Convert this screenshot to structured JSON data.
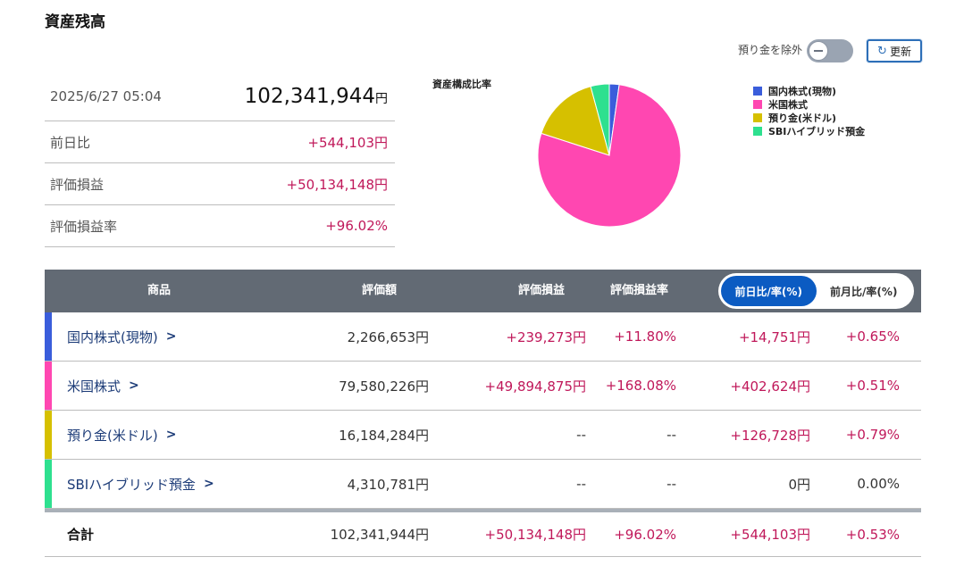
{
  "page": {
    "title": "資産残高"
  },
  "controls": {
    "exclude_label": "預り金を除外",
    "refresh_label": "更新"
  },
  "summary": {
    "datetime": "2025/6/27 05:04",
    "total": "102,341,944",
    "total_unit": "円",
    "rows": [
      {
        "label": "前日比",
        "value": "+544,103円"
      },
      {
        "label": "評価損益",
        "value": "+50,134,148円"
      },
      {
        "label": "評価損益率",
        "value": "+96.02%"
      }
    ]
  },
  "chart_data": {
    "type": "pie",
    "title": "資産構成比率",
    "categories": [
      "国内株式(現物)",
      "米国株式",
      "預り金(米ドル)",
      "SBIハイブリッド預金"
    ],
    "values": [
      2266653,
      79580226,
      16184284,
      4310781
    ],
    "colors": [
      "#3a5ddb",
      "#ff47b1",
      "#d6c000",
      "#2ee08f"
    ],
    "legend_position": "right"
  },
  "table": {
    "headers": {
      "product": "商品",
      "valuation": "評価額",
      "gain": "評価損益",
      "gain_rate": "評価損益率"
    },
    "toggle": {
      "active": "前日比/率(%)",
      "inactive": "前月比/率(%)"
    },
    "rows": [
      {
        "name": "国内株式(現物)",
        "color": "#3a5ddb",
        "valuation": "2,266,653円",
        "gain": "+239,273円",
        "gain_rate": "+11.80%",
        "day_change": "+14,751円",
        "day_rate": "+0.65%"
      },
      {
        "name": "米国株式",
        "color": "#ff47b1",
        "valuation": "79,580,226円",
        "gain": "+49,894,875円",
        "gain_rate": "+168.08%",
        "day_change": "+402,624円",
        "day_rate": "+0.51%"
      },
      {
        "name": "預り金(米ドル)",
        "color": "#d6c000",
        "valuation": "16,184,284円",
        "gain": "--",
        "gain_rate": "--",
        "day_change": "+126,728円",
        "day_rate": "+0.79%"
      },
      {
        "name": "SBIハイブリッド預金",
        "color": "#2ee08f",
        "valuation": "4,310,781円",
        "gain": "--",
        "gain_rate": "--",
        "day_change": "0円",
        "day_rate": "0.00%"
      }
    ],
    "total": {
      "name": "合計",
      "valuation": "102,341,944円",
      "gain": "+50,134,148円",
      "gain_rate": "+96.02%",
      "day_change": "+544,103円",
      "day_rate": "+0.53%"
    }
  }
}
